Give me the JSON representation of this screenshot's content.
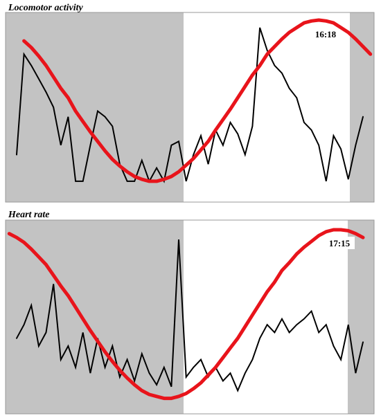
{
  "chart_data": [
    {
      "type": "line",
      "title": "Locomotor activity",
      "annotation": "16:18",
      "ylim": [
        0,
        100
      ],
      "series": [
        {
          "color": "#000000",
          "values": [
            null,
            25,
            78,
            72,
            65,
            58,
            50,
            30,
            45,
            11,
            11,
            30,
            48,
            45,
            40,
            20,
            11,
            11,
            22,
            11,
            18,
            11,
            30,
            32,
            11,
            25,
            35,
            20,
            38,
            30,
            42,
            36,
            25,
            40,
            92,
            80,
            72,
            68,
            60,
            55,
            42,
            38,
            30,
            11,
            35,
            28,
            12,
            30,
            45,
            null
          ]
        },
        {
          "color": "#e8141b",
          "values": [
            null,
            null,
            85,
            81.5,
            77,
            72,
            66,
            60,
            55,
            48,
            42.5,
            37,
            32,
            27,
            22.5,
            19,
            16,
            13.5,
            12,
            11,
            11,
            12,
            13.5,
            16,
            19.5,
            23,
            27.5,
            32,
            38,
            43.5,
            49,
            55,
            61,
            67,
            72,
            78,
            82,
            86,
            89.5,
            92,
            94.5,
            95.5,
            96,
            95.5,
            94.5,
            92,
            89.5,
            86,
            82,
            78
          ]
        }
      ]
    },
    {
      "type": "line",
      "title": "Heart rate",
      "annotation": "17:15",
      "ylim": [
        0,
        100
      ],
      "series": [
        {
          "color": "#000000",
          "values": [
            null,
            39,
            46,
            56,
            35,
            42,
            67,
            28,
            35,
            24,
            42,
            21,
            39,
            24,
            35,
            19,
            28,
            17,
            31,
            21,
            15,
            24,
            14,
            90,
            19,
            24,
            28,
            19,
            24,
            17,
            21,
            12,
            21,
            28,
            39,
            46,
            42,
            49,
            42,
            46,
            49,
            53,
            42,
            46,
            35,
            28,
            46,
            21,
            37,
            null
          ]
        },
        {
          "color": "#e8141b",
          "values": [
            93,
            91,
            88.5,
            85,
            81,
            77,
            71.5,
            66,
            61,
            55,
            49,
            43,
            37.5,
            32,
            27,
            22.5,
            18.5,
            15,
            12,
            10,
            9,
            8,
            8,
            9,
            10.5,
            13,
            16,
            20,
            24,
            29,
            34,
            39,
            45,
            51,
            57,
            63,
            68,
            74,
            78,
            82.5,
            86,
            89,
            92,
            94,
            95,
            95,
            94.5,
            93,
            91,
            null
          ]
        }
      ]
    }
  ]
}
